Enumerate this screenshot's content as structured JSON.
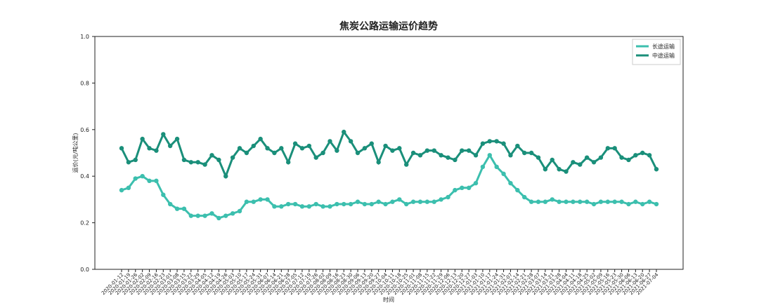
{
  "chart_data": {
    "type": "line",
    "title": "焦炭公路运输运价趋势",
    "x_label": "时间",
    "y_label": "运价(元/吨公里)",
    "categories": [
      "2020-01-12",
      "2020-01-19",
      "2020-01-26",
      "2020-02-02",
      "2020-02-09",
      "2020-02-16",
      "2020-02-23",
      "2020-03-01",
      "2020-03-08",
      "2020-03-15",
      "2020-03-22",
      "2020-03-29",
      "2020-04-05",
      "2020-04-12",
      "2020-04-19",
      "2020-04-26",
      "2020-05-03",
      "2020-05-10",
      "2020-05-17",
      "2020-05-24",
      "2020-05-31",
      "2020-06-07",
      "2020-06-14",
      "2020-06-21",
      "2020-06-28",
      "2020-07-05",
      "2020-07-12",
      "2020-07-19",
      "2020-07-26",
      "2020-08-02",
      "2020-08-09",
      "2020-08-16",
      "2020-08-23",
      "2020-08-30",
      "2020-09-06",
      "2020-09-13",
      "2020-09-20",
      "2020-09-27",
      "2020-10-04",
      "2020-10-11",
      "2020-10-18",
      "2020-10-25",
      "2020-11-01",
      "2020-11-08",
      "2020-11-15",
      "2020-11-22",
      "2020-11-29",
      "2020-12-06",
      "2020-12-13",
      "2020-12-20",
      "2020-12-27",
      "2021-01-03",
      "2021-01-10",
      "2021-01-17",
      "2021-01-24",
      "2021-01-31",
      "2021-02-07",
      "2021-02-14",
      "2021-02-21",
      "2021-02-28",
      "2021-03-07",
      "2021-03-14",
      "2021-03-21",
      "2021-03-28",
      "2021-04-04",
      "2021-04-11",
      "2021-04-18",
      "2021-04-25",
      "2021-05-02",
      "2021-05-09",
      "2021-05-16",
      "2021-05-23",
      "2021-05-30",
      "2021-06-06",
      "2021-06-13",
      "2021-06-20",
      "2021-06-27",
      "2021-07-04"
    ],
    "series": [
      {
        "name": "长途运输",
        "color": "#3cbfae",
        "values": [
          0.34,
          0.35,
          0.39,
          0.4,
          0.38,
          0.38,
          0.32,
          0.28,
          0.26,
          0.26,
          0.23,
          0.23,
          0.23,
          0.24,
          0.22,
          0.23,
          0.24,
          0.25,
          0.29,
          0.29,
          0.3,
          0.3,
          0.27,
          0.27,
          0.28,
          0.28,
          0.27,
          0.27,
          0.28,
          0.27,
          0.27,
          0.28,
          0.28,
          0.28,
          0.29,
          0.28,
          0.28,
          0.29,
          0.28,
          0.29,
          0.3,
          0.28,
          0.29,
          0.29,
          0.29,
          0.29,
          0.3,
          0.31,
          0.34,
          0.35,
          0.35,
          0.37,
          0.44,
          0.49,
          0.44,
          0.41,
          0.37,
          0.34,
          0.31,
          0.29,
          0.29,
          0.29,
          0.3,
          0.29,
          0.29,
          0.29,
          0.29,
          0.29,
          0.28,
          0.29,
          0.29,
          0.29,
          0.29,
          0.28,
          0.29,
          0.28,
          0.29,
          0.28
        ]
      },
      {
        "name": "中途运输",
        "color": "#1a8f7a",
        "values": [
          0.52,
          0.46,
          0.47,
          0.56,
          0.52,
          0.51,
          0.58,
          0.53,
          0.56,
          0.47,
          0.46,
          0.46,
          0.45,
          0.49,
          0.47,
          0.4,
          0.48,
          0.52,
          0.5,
          0.53,
          0.56,
          0.52,
          0.5,
          0.52,
          0.46,
          0.54,
          0.52,
          0.53,
          0.48,
          0.5,
          0.55,
          0.51,
          0.59,
          0.55,
          0.5,
          0.52,
          0.54,
          0.46,
          0.53,
          0.51,
          0.52,
          0.45,
          0.5,
          0.49,
          0.51,
          0.51,
          0.49,
          0.48,
          0.47,
          0.51,
          0.51,
          0.49,
          0.54,
          0.55,
          0.55,
          0.54,
          0.49,
          0.53,
          0.5,
          0.5,
          0.48,
          0.43,
          0.47,
          0.43,
          0.42,
          0.46,
          0.45,
          0.48,
          0.46,
          0.48,
          0.52,
          0.52,
          0.48,
          0.47,
          0.49,
          0.5,
          0.49,
          0.43
        ]
      }
    ],
    "ylim": [
      0,
      1
    ],
    "yticks": [
      {
        "value": 0,
        "label": "0.0"
      },
      0.2,
      0.4,
      0.6,
      0.8,
      {
        "value": 1,
        "label": "1.0"
      }
    ],
    "legend": "upper right",
    "markers": true
  }
}
